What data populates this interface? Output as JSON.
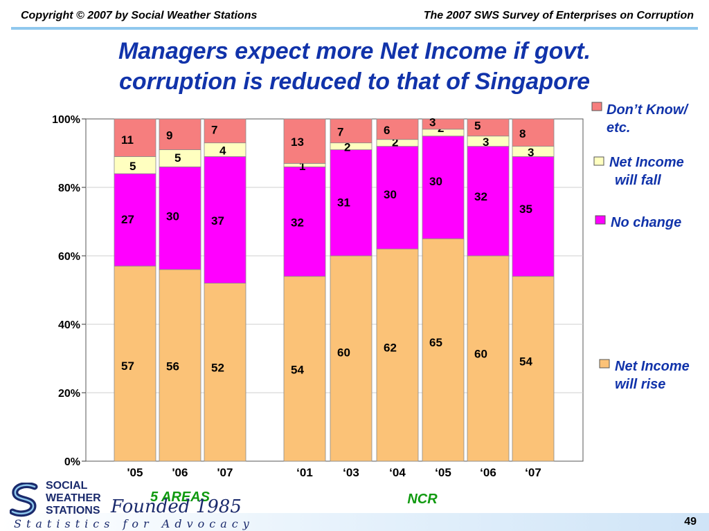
{
  "header": {
    "copyright": "Copyright © 2007 by Social Weather Stations",
    "survey": "The 2007 SWS Survey of Enterprises on Corruption"
  },
  "title_line1": "Managers expect more Net Income if govt.",
  "title_line2": "corruption is reduced to that of Singapore",
  "chart_data": {
    "type": "bar",
    "stacked": true,
    "ylim": [
      0,
      100
    ],
    "yticks": [
      "0%",
      "20%",
      "40%",
      "60%",
      "80%",
      "100%"
    ],
    "groups": [
      {
        "label": "5 AREAS",
        "categories": [
          "'05",
          "'06",
          "'07"
        ]
      },
      {
        "label": "NCR",
        "categories": [
          "‘01",
          "‘03",
          "‘04",
          "‘05",
          "‘06",
          "‘07"
        ]
      }
    ],
    "categories": [
      "'05",
      "'06",
      "'07",
      "‘01",
      "‘03",
      "‘04",
      "‘05",
      "‘06",
      "‘07"
    ],
    "series": [
      {
        "name": "Net Income will rise",
        "color": "#fbc277",
        "values": [
          57,
          56,
          52,
          54,
          60,
          62,
          65,
          60,
          54
        ]
      },
      {
        "name": "No change",
        "color": "#ff00ff",
        "values": [
          27,
          30,
          37,
          32,
          31,
          30,
          30,
          32,
          35
        ]
      },
      {
        "name": "Net Income will fall",
        "color": "#ffffc0",
        "values": [
          5,
          5,
          4,
          1,
          2,
          2,
          2,
          3,
          3
        ]
      },
      {
        "name": "Don’t Know/ etc.",
        "color": "#f67e7e",
        "values": [
          11,
          9,
          7,
          13,
          7,
          6,
          3,
          5,
          8
        ]
      }
    ],
    "legend": [
      {
        "line1": "Don’t Know/",
        "line2": "etc."
      },
      {
        "line1": "Net Income",
        "line2": "will fall"
      },
      {
        "line1": "No change",
        "line2": ""
      },
      {
        "line1": "Net Income",
        "line2": "will rise"
      }
    ],
    "legend_placement": "right",
    "grid": true
  },
  "footer": {
    "logo_line1": "SOCIAL",
    "logo_line2": "WEATHER",
    "logo_line3": "STATIONS",
    "founded": "Founded 1985",
    "tagline": "Statistics for Advocacy",
    "page_number": "49"
  }
}
